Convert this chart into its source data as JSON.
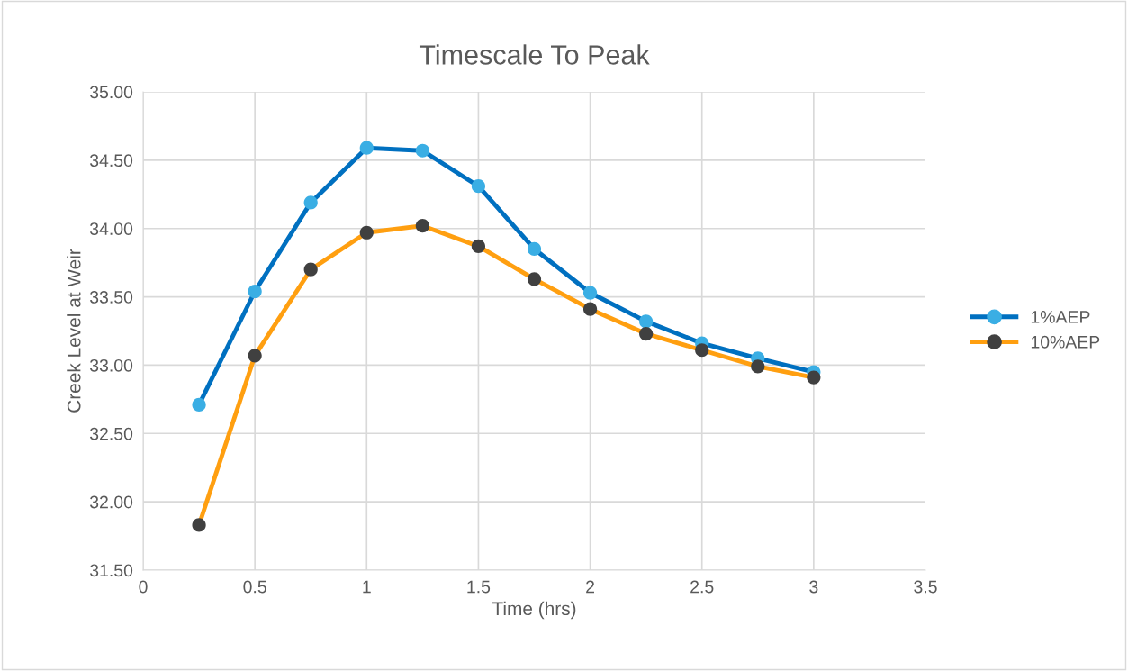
{
  "chart_data": {
    "type": "line",
    "title": "Timescale To Peak",
    "xlabel": "Time (hrs)",
    "ylabel": "Creek Level at Weir",
    "x": [
      0.25,
      0.5,
      0.75,
      1,
      1.25,
      1.5,
      1.75,
      2,
      2.25,
      2.5,
      2.75,
      3
    ],
    "series": [
      {
        "name": "1%AEP",
        "color": "#0070c0",
        "colors": [
          "#3aaee4",
          "#3aaee4",
          "#3aaee4",
          "#3aaee4",
          "#3aaee4",
          "#3aaee4",
          "#3aaee4",
          "#3aaee4",
          "#3aaee4",
          "#3aaee4",
          "#3aaee4",
          "#3aaee4"
        ],
        "values": [
          32.71,
          33.54,
          34.19,
          34.59,
          34.57,
          34.31,
          33.85,
          33.53,
          33.32,
          33.16,
          33.05,
          32.95
        ]
      },
      {
        "name": "10%AEP",
        "color": "#ff9f10",
        "colors": [
          "#404040",
          "#404040",
          "#404040",
          "#404040",
          "#404040",
          "#404040",
          "#404040",
          "#404040",
          "#404040",
          "#404040",
          "#404040",
          "#404040"
        ],
        "values": [
          31.83,
          33.07,
          33.7,
          33.97,
          34.02,
          33.87,
          33.63,
          33.41,
          33.23,
          33.11,
          32.99,
          32.91
        ]
      }
    ],
    "xlim": [
      0,
      3.5
    ],
    "xticks": [
      0,
      0.5,
      1,
      1.5,
      2,
      2.5,
      3,
      3.5
    ],
    "ylim": [
      31.5,
      35.0
    ],
    "yticks": [
      {
        "value": 31.5,
        "label": "31.50"
      },
      {
        "value": 32.0,
        "label": "32.00"
      },
      {
        "value": 32.5,
        "label": "32.50"
      },
      {
        "value": 33.0,
        "label": "33.00"
      },
      {
        "value": 33.5,
        "label": "33.50"
      },
      {
        "value": 34.0,
        "label": "34.00"
      },
      {
        "value": 34.5,
        "label": "34.50"
      },
      {
        "value": 35.0,
        "label": "35.00"
      }
    ],
    "grid": true,
    "legend": "right",
    "marker": "circle",
    "line_style": "solid"
  }
}
